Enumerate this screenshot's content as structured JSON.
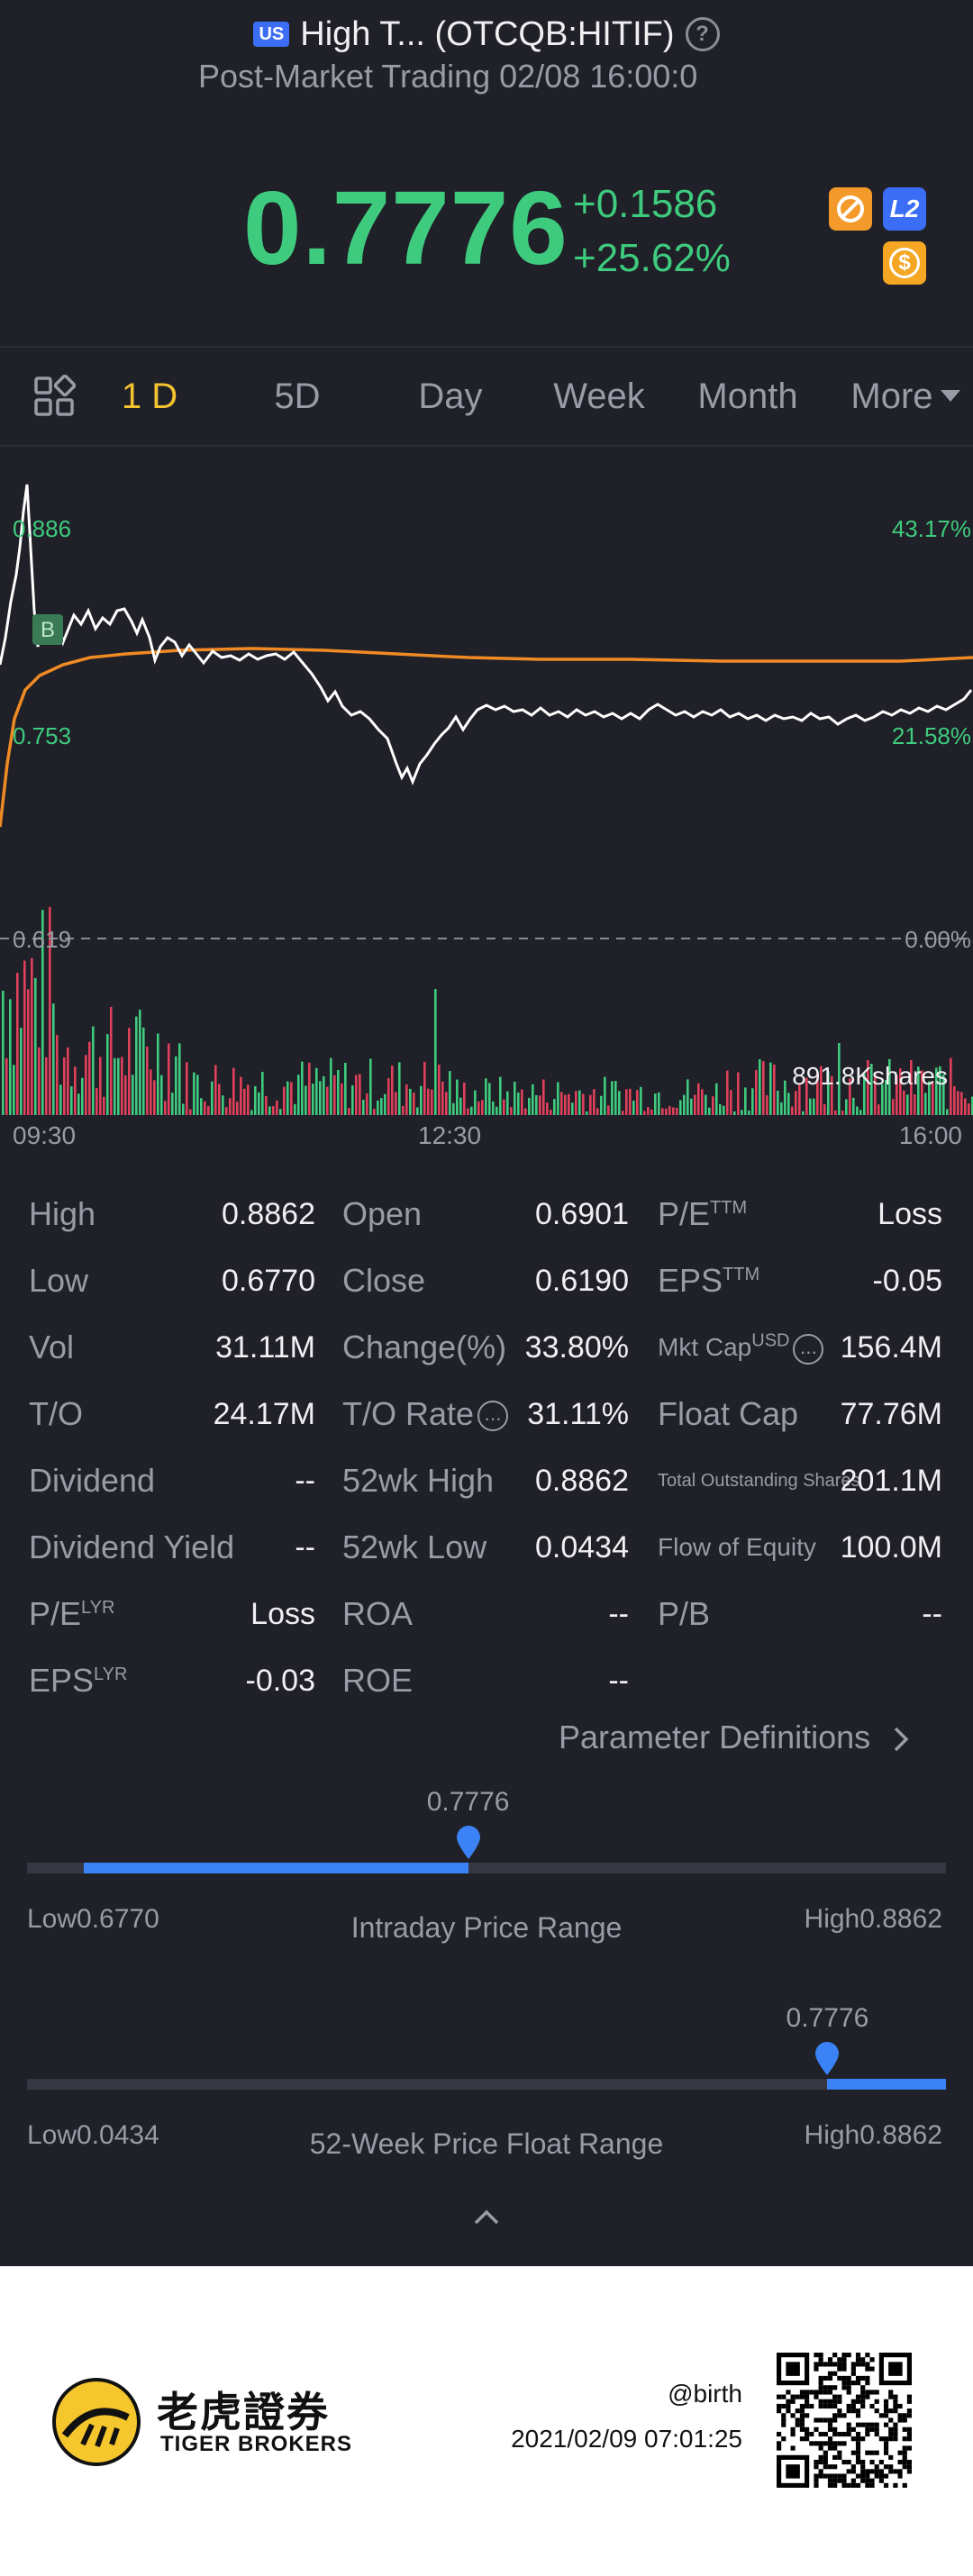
{
  "header": {
    "market_badge": "US",
    "title": "High T... (OTCQB:HITIF)",
    "subtitle": "Post-Market Trading 02/08 16:00:0",
    "price": "0.7776",
    "change": "+0.1586",
    "change_pct": "+25.62%",
    "icon_l2": "L2",
    "icon_dollar": "$"
  },
  "tabs": [
    {
      "label": "1 D"
    },
    {
      "label": "5D"
    },
    {
      "label": "Day"
    },
    {
      "label": "Week"
    },
    {
      "label": "Month"
    },
    {
      "label": "More"
    }
  ],
  "chart": {
    "price_high_label": "0.886",
    "price_mid_label": "0.753",
    "price_low_label": "0.619",
    "pct_high_label": "43.17%",
    "pct_mid_label": "21.58%",
    "pct_low_label": "0.00%",
    "volume_label": "891.8Kshares",
    "marker": "B",
    "time_start": "09:30",
    "time_mid": "12:30",
    "time_end": "16:00",
    "colors": {
      "up": "#3fcb7e",
      "down": "#e0405a",
      "price_line": "#ffffff",
      "avg_line": "#f08a24"
    }
  },
  "stats": {
    "col1": [
      {
        "label": "High",
        "value": "0.8862"
      },
      {
        "label": "Low",
        "value": "0.6770"
      },
      {
        "label": "Vol",
        "value": "31.11M"
      },
      {
        "label": "T/O",
        "value": "24.17M"
      },
      {
        "label": "Dividend",
        "value": "--"
      },
      {
        "label": "Dividend Yield",
        "value": "--"
      },
      {
        "label": "P/E",
        "sup": "LYR",
        "value": "Loss"
      },
      {
        "label": "EPS",
        "sup": "LYR",
        "value": "-0.03"
      }
    ],
    "col2": [
      {
        "label": "Open",
        "value": "0.6901"
      },
      {
        "label": "Close",
        "value": "0.6190"
      },
      {
        "label": "Change(%)",
        "value": "33.80%"
      },
      {
        "label": "T/O Rate",
        "value": "31.11%"
      },
      {
        "label": "52wk High",
        "value": "0.8862"
      },
      {
        "label": "52wk Low",
        "value": "0.0434"
      },
      {
        "label": "ROA",
        "value": "--"
      },
      {
        "label": "ROE",
        "value": "--"
      }
    ],
    "col3": [
      {
        "label": "P/E",
        "sup": "TTM",
        "value": "Loss"
      },
      {
        "label": "EPS",
        "sup": "TTM",
        "value": "-0.05"
      },
      {
        "label": "Mkt Cap",
        "sup": "USD",
        "value": "156.4M"
      },
      {
        "label": "Float Cap",
        "value": "77.76M"
      },
      {
        "label": "Total Outstanding Shares",
        "value": "201.1M"
      },
      {
        "label": "Flow of Equity",
        "value": "100.0M"
      },
      {
        "label": "P/B",
        "value": "--"
      }
    ]
  },
  "param_link": "Parameter Definitions",
  "intraday": {
    "current": "0.7776",
    "low_label": "Low0.6770",
    "high_label": "High0.8862",
    "title": "Intraday Price Range",
    "fraction": 0.48
  },
  "week52": {
    "current": "0.7776",
    "low_label": "Low0.0434",
    "high_label": "High0.8862",
    "title": "52-Week Price Float Range",
    "fraction": 0.871
  },
  "footer": {
    "brand_cn": "老虎證券",
    "brand_en": "TIGER BROKERS",
    "handle": "@birth",
    "timestamp": "2021/02/09 07:01:25"
  }
}
